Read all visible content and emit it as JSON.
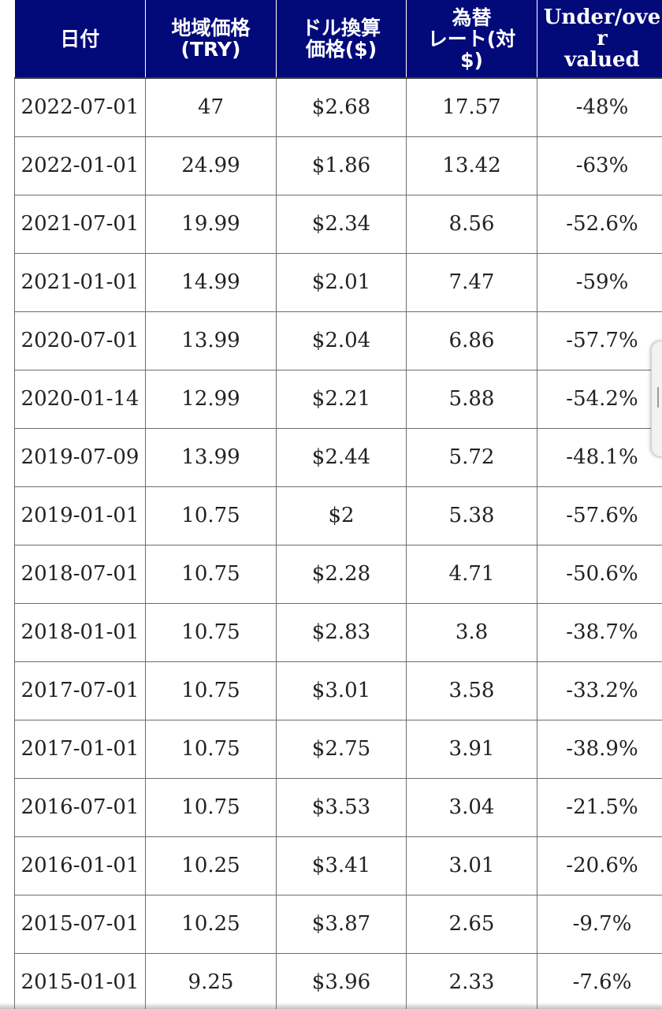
{
  "table": {
    "headers": [
      "日付",
      "地域価格\n(TRY)",
      "ドル換算\n価格($)",
      "為替\nレート(対\n$)",
      "Under/over\nvalued"
    ],
    "rows": [
      [
        "2022-07-01",
        "47",
        "$2.68",
        "17.57",
        "-48%"
      ],
      [
        "2022-01-01",
        "24.99",
        "$1.86",
        "13.42",
        "-63%"
      ],
      [
        "2021-07-01",
        "19.99",
        "$2.34",
        "8.56",
        "-52.6%"
      ],
      [
        "2021-01-01",
        "14.99",
        "$2.01",
        "7.47",
        "-59%"
      ],
      [
        "2020-07-01",
        "13.99",
        "$2.04",
        "6.86",
        "-57.7%"
      ],
      [
        "2020-01-14",
        "12.99",
        "$2.21",
        "5.88",
        "-54.2%"
      ],
      [
        "2019-07-09",
        "13.99",
        "$2.44",
        "5.72",
        "-48.1%"
      ],
      [
        "2019-01-01",
        "10.75",
        "$2",
        "5.38",
        "-57.6%"
      ],
      [
        "2018-07-01",
        "10.75",
        "$2.28",
        "4.71",
        "-50.6%"
      ],
      [
        "2018-01-01",
        "10.75",
        "$2.83",
        "3.8",
        "-38.7%"
      ],
      [
        "2017-07-01",
        "10.75",
        "$3.01",
        "3.58",
        "-33.2%"
      ],
      [
        "2017-01-01",
        "10.75",
        "$2.75",
        "3.91",
        "-38.9%"
      ],
      [
        "2016-07-01",
        "10.75",
        "$3.53",
        "3.04",
        "-21.5%"
      ],
      [
        "2016-01-01",
        "10.25",
        "$3.41",
        "3.01",
        "-20.6%"
      ],
      [
        "2015-07-01",
        "10.25",
        "$3.87",
        "2.65",
        "-9.7%"
      ],
      [
        "2015-01-01",
        "9.25",
        "$3.96",
        "2.33",
        "-7.6%"
      ]
    ]
  },
  "colors": {
    "header_background": "#020a7a",
    "header_text": "#ffffff",
    "cell_border": "#6d6d6d"
  }
}
